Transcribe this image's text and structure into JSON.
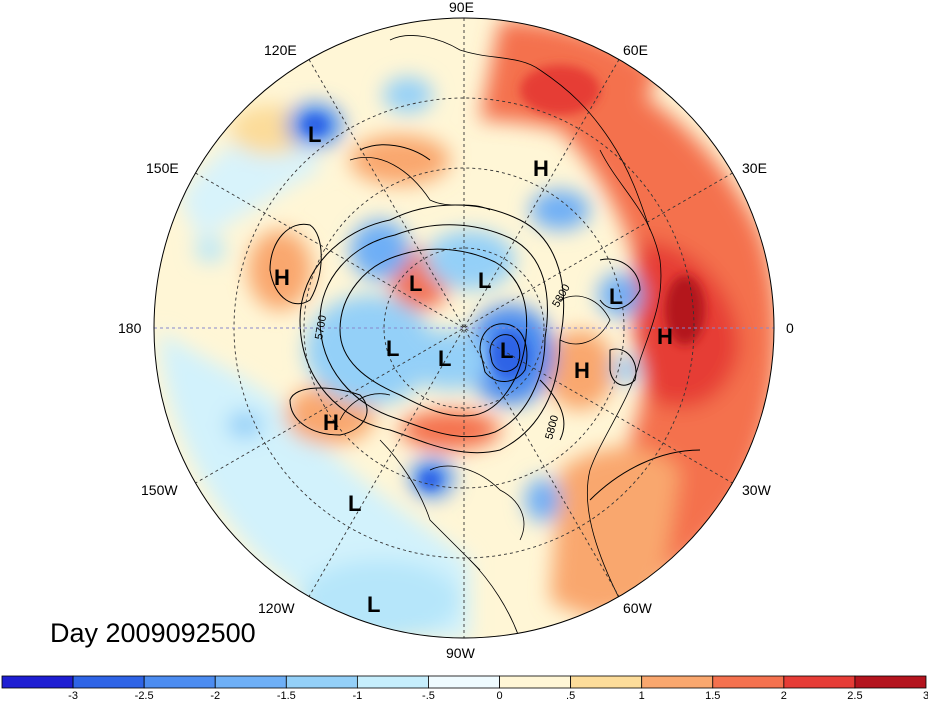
{
  "title": "Day 2009092500",
  "longitude_labels": {
    "lon_90e": "90E",
    "lon_60e": "60E",
    "lon_30e": "30E",
    "lon_0": "0",
    "lon_30w": "30W",
    "lon_60w": "60W",
    "lon_90w": "90W",
    "lon_120w": "120W",
    "lon_150w": "150W",
    "lon_180": "180",
    "lon_150e": "150E",
    "lon_120e": "120E"
  },
  "pressure_centers": [
    {
      "type": "L",
      "label": "L",
      "region": "east-siberia"
    },
    {
      "type": "H",
      "label": "H",
      "region": "central-siberia"
    },
    {
      "type": "H",
      "label": "H",
      "region": "north-pacific"
    },
    {
      "type": "L",
      "label": "L",
      "region": "east-siberian-sea"
    },
    {
      "type": "L",
      "label": "L",
      "region": "kara-sea"
    },
    {
      "type": "L",
      "label": "L",
      "region": "scandinavia"
    },
    {
      "type": "H",
      "label": "H",
      "region": "europe"
    },
    {
      "type": "L",
      "label": "L",
      "region": "beaufort-sea"
    },
    {
      "type": "L",
      "label": "L",
      "region": "canadian-arctic"
    },
    {
      "type": "L",
      "label": "L",
      "region": "baffin-bay"
    },
    {
      "type": "H",
      "label": "H",
      "region": "north-atlantic"
    },
    {
      "type": "H",
      "label": "H",
      "region": "alaska-gulf"
    },
    {
      "type": "L",
      "label": "L",
      "region": "east-pacific"
    },
    {
      "type": "L",
      "label": "L",
      "region": "tropical-east-pacific"
    }
  ],
  "contour_labels": {
    "c5700": "5700",
    "c5800a": "5800",
    "c5800b": "5800"
  },
  "colorbar": {
    "ticks": [
      "-3",
      "-2.5",
      "-2",
      "-1.5",
      "-1",
      "-.5",
      "0",
      ".5",
      "1",
      "1.5",
      "2",
      "2.5",
      "3"
    ],
    "colors": [
      "#1e1ed2",
      "#2e64e6",
      "#4c8cf0",
      "#6eaff6",
      "#94d0f8",
      "#c6eefc",
      "#effbff",
      "#fff6d6",
      "#fcdc9a",
      "#f9a76e",
      "#f4714e",
      "#e63c36",
      "#b4141e"
    ]
  }
}
